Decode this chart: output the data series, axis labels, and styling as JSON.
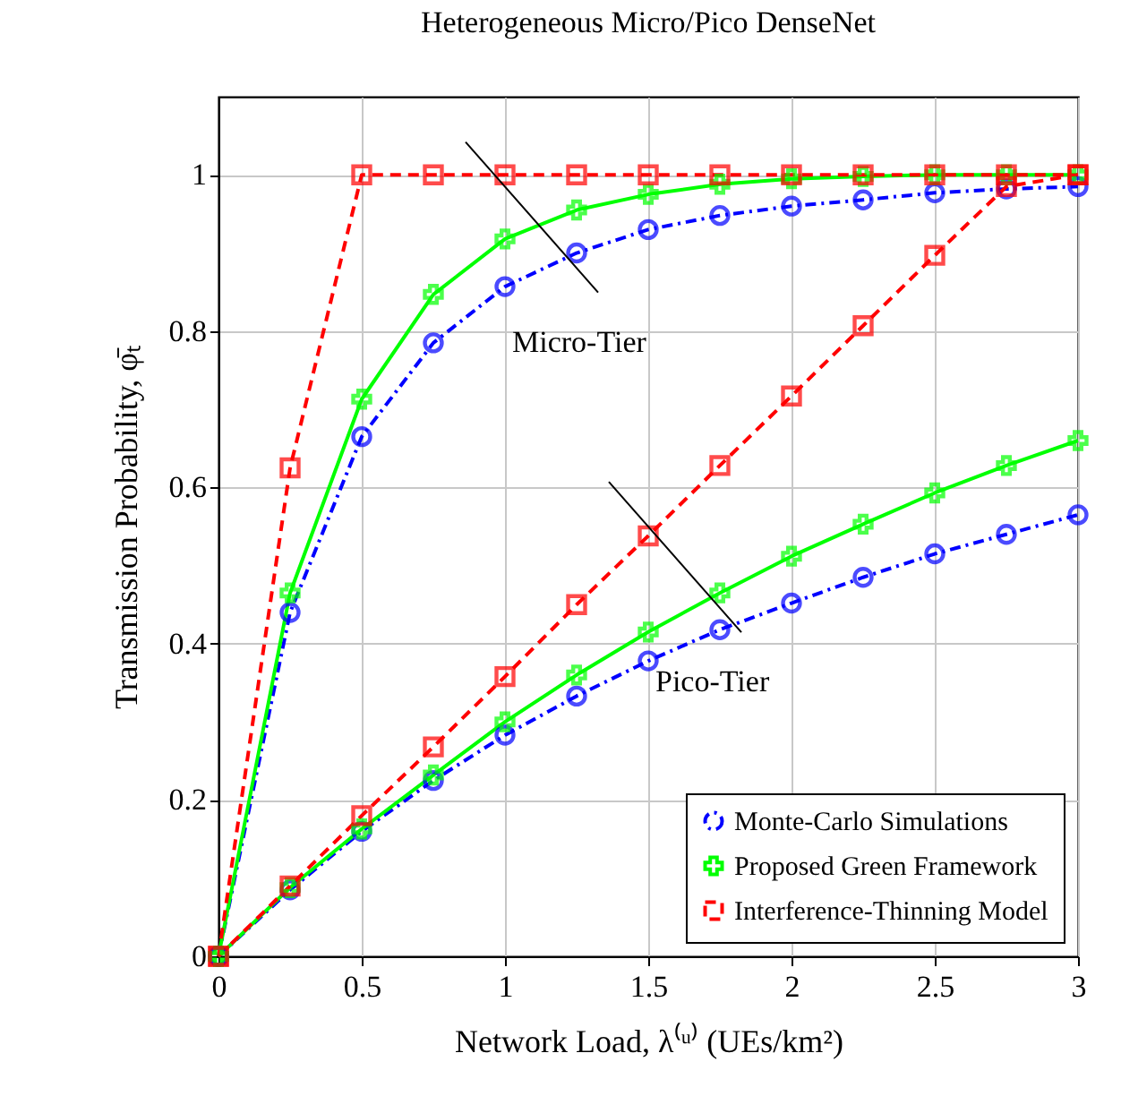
{
  "chart_data": {
    "type": "line",
    "title": "Heterogeneous Micro/Pico DenseNet",
    "xlabel": "Network Load, λ⁽ᵘ⁾ (UEs/km²)",
    "ylabel": "Transmission Probability, φ̄ₜ",
    "x": [
      0,
      0.25,
      0.5,
      0.75,
      1,
      1.25,
      1.5,
      1.75,
      2,
      2.25,
      2.5,
      2.75,
      3
    ],
    "series": [
      {
        "name": "Monte-Carlo Simulations",
        "color": "#0000ff",
        "marker": "circle",
        "line_style": "dashdot",
        "values": [
          0,
          0.44,
          0.665,
          0.785,
          0.857,
          0.9,
          0.93,
          0.948,
          0.96,
          0.968,
          0.977,
          0.982,
          0.985
        ]
      },
      {
        "name": "Proposed Green Framework",
        "color": "#00ff00",
        "marker": "cross",
        "line_style": "solid",
        "values": [
          0,
          0.465,
          0.713,
          0.847,
          0.918,
          0.955,
          0.975,
          0.988,
          0.995,
          0.998,
          1.0,
          1.0,
          1.0
        ]
      },
      {
        "name": "Interference-Thinning Model",
        "color": "#ff0000",
        "marker": "square",
        "line_style": "dashed",
        "values": [
          0,
          0.625,
          1,
          1,
          1,
          1,
          1,
          1,
          1,
          1,
          1,
          1,
          1
        ]
      },
      {
        "color": "#0000ff",
        "marker": "circle",
        "line_style": "dashdot",
        "values": [
          0,
          0.085,
          0.16,
          0.225,
          0.283,
          0.333,
          0.378,
          0.418,
          0.452,
          0.485,
          0.515,
          0.54,
          0.565
        ]
      },
      {
        "color": "#00ff00",
        "marker": "cross",
        "line_style": "solid",
        "values": [
          0,
          0.088,
          0.163,
          0.232,
          0.3,
          0.36,
          0.415,
          0.465,
          0.512,
          0.553,
          0.593,
          0.628,
          0.66
        ]
      },
      {
        "color": "#ff0000",
        "marker": "square",
        "line_style": "dashed",
        "values": [
          0,
          0.09,
          0.18,
          0.268,
          0.358,
          0.45,
          0.538,
          0.628,
          0.717,
          0.807,
          0.897,
          0.985,
          1.0
        ]
      }
    ],
    "xlim": [
      0,
      3
    ],
    "xticks": [
      0,
      0.5,
      1,
      1.5,
      2,
      2.5,
      3
    ],
    "ylim": [
      0,
      1.1
    ],
    "yticks": [
      0,
      0.2,
      0.4,
      0.6,
      0.8,
      1
    ],
    "grid": true,
    "legend": "bottom right",
    "annotations": [
      {
        "text": "Micro-Tier",
        "x": 1.25,
        "y": 0.9
      },
      {
        "text": "Pico-Tier",
        "x": 1.75,
        "y": 0.465
      }
    ]
  }
}
